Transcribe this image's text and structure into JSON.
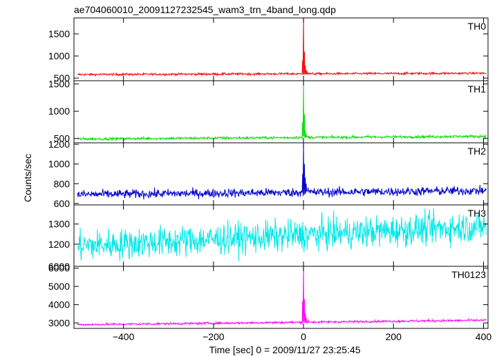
{
  "chart_data": {
    "type": "line",
    "title": "ae704060010_20091127232545_wam3_trn_4band_long.qdp",
    "xlabel": "Time [sec] 0 = 2009/11/27 23:25:45",
    "ylabel": "Counts/sec",
    "xlim": [
      -510,
      410
    ],
    "x_ticks": [
      -400,
      -200,
      0,
      200,
      400
    ],
    "x_tick_labels": [
      "−400",
      "−200",
      "0",
      "200",
      "400"
    ],
    "grid": false,
    "panels": [
      {
        "name": "TH0",
        "color": "#ff0000",
        "ylim": [
          440,
          1860
        ],
        "y_ticks": [
          500,
          1000,
          1500
        ],
        "y_tick_labels": [
          "500",
          "1000",
          "1500"
        ],
        "baseline_start": 580,
        "baseline_end": 610,
        "noise": 18,
        "burst": [
          [
            -4,
            590
          ],
          [
            -2,
            900
          ],
          [
            0,
            1860
          ],
          [
            2,
            1100
          ],
          [
            4,
            780
          ],
          [
            6,
            680
          ],
          [
            8,
            650
          ],
          [
            12,
            620
          ]
        ]
      },
      {
        "name": "TH1",
        "color": "#00e000",
        "ylim": [
          420,
          1560
        ],
        "y_ticks": [
          500,
          1000,
          1500
        ],
        "y_tick_labels": [
          "500",
          "1000",
          "1500"
        ],
        "baseline_start": 490,
        "baseline_end": 540,
        "noise": 18,
        "burst": [
          [
            -4,
            510
          ],
          [
            -2,
            800
          ],
          [
            0,
            1500
          ],
          [
            2,
            950
          ],
          [
            4,
            640
          ],
          [
            6,
            580
          ],
          [
            10,
            540
          ]
        ]
      },
      {
        "name": "TH2",
        "color": "#0000cc",
        "ylim": [
          585,
          1215
        ],
        "y_ticks": [
          600,
          800,
          1000,
          1200
        ],
        "y_tick_labels": [
          "600",
          "800",
          "1000",
          "1200"
        ],
        "baseline_start": 690,
        "baseline_end": 730,
        "noise": 32,
        "burst": [
          [
            -4,
            730
          ],
          [
            -2,
            900
          ],
          [
            0,
            1200
          ],
          [
            2,
            1000
          ],
          [
            4,
            860
          ],
          [
            6,
            800
          ],
          [
            10,
            760
          ]
        ]
      },
      {
        "name": "TH3",
        "color": "#00e8e8",
        "ylim": [
          1090,
          1395
        ],
        "y_ticks": [
          1200,
          1300
        ],
        "y_tick_labels": [
          "1200",
          "1300"
        ],
        "bottom_tick_label": "6000",
        "baseline_start": 1190,
        "baseline_end": 1290,
        "noise": 55,
        "burst": []
      },
      {
        "name": "TH0123",
        "color": "#ff00ff",
        "ylim": [
          2700,
          6100
        ],
        "y_ticks": [
          3000,
          4000,
          5000,
          6000
        ],
        "y_tick_labels": [
          "3000",
          "4000",
          "5000",
          "6000"
        ],
        "baseline_start": 2900,
        "baseline_end": 3150,
        "noise": 45,
        "burst": [
          [
            -4,
            3000
          ],
          [
            -2,
            4200
          ],
          [
            0,
            6100
          ],
          [
            2,
            4300
          ],
          [
            4,
            3500
          ],
          [
            6,
            3300
          ],
          [
            10,
            3200
          ]
        ]
      }
    ]
  }
}
